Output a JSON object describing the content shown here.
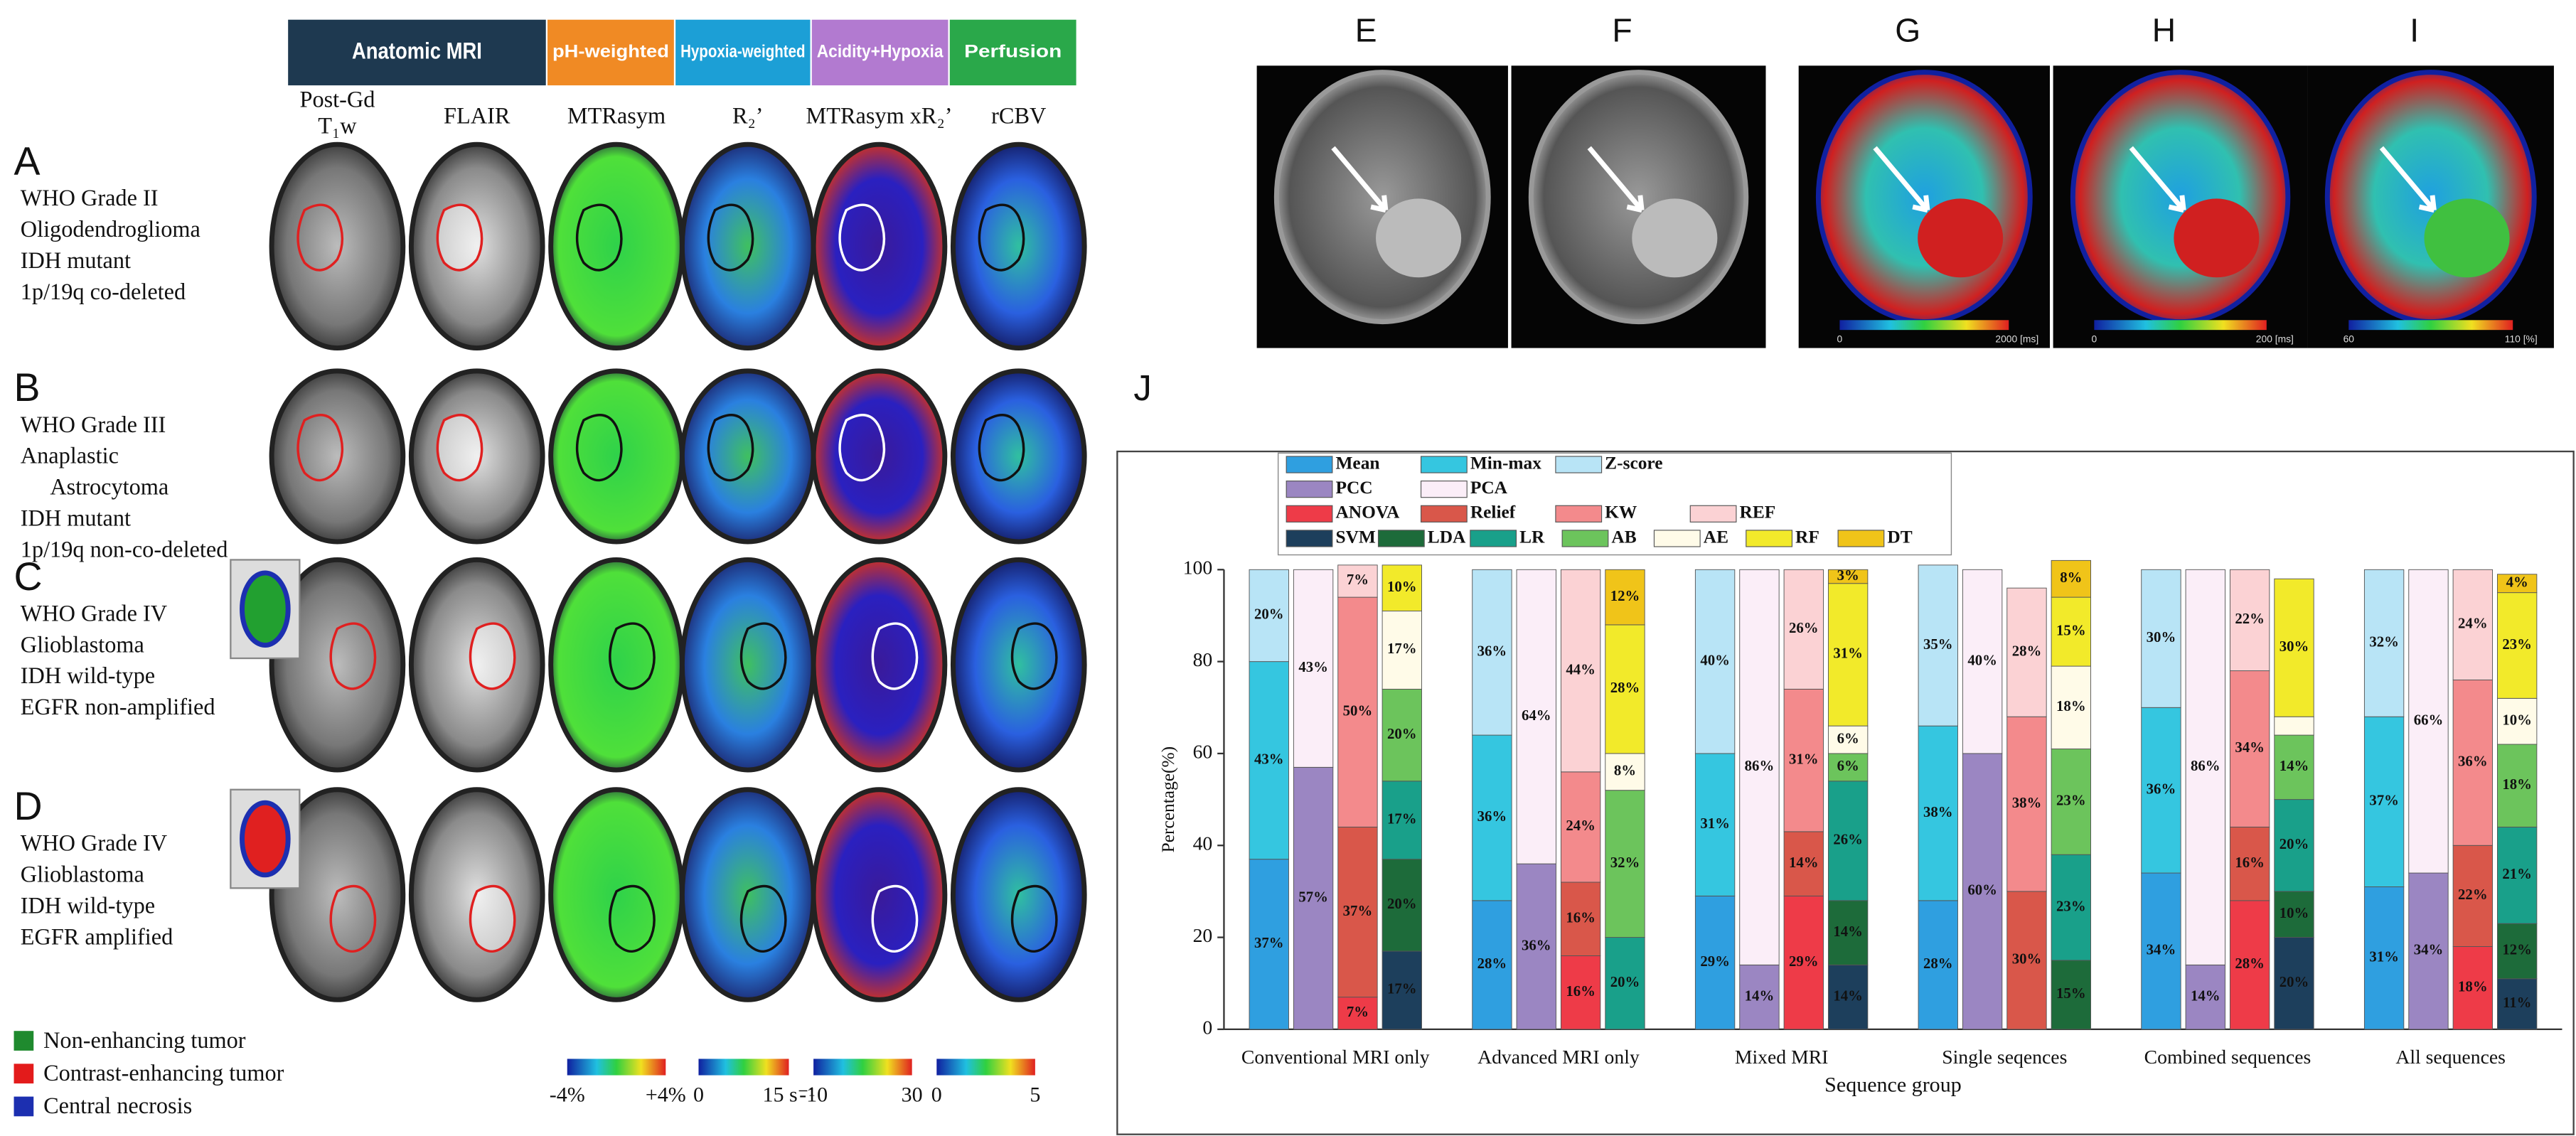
{
  "mri_panel": {
    "modalities": [
      {
        "label": "Anatomic MRI",
        "color": "#1e3950"
      },
      {
        "label": "pH-weighted",
        "color": "#f08a24"
      },
      {
        "label": "Hypoxia-weighted",
        "color": "#1c9fd6"
      },
      {
        "label": "Acidity+Hypoxia",
        "color": "#b27ad0"
      },
      {
        "label": "Perfusion",
        "color": "#2aa84a"
      }
    ],
    "columns": [
      [
        "Post-Gd",
        "T₁w"
      ],
      [
        "FLAIR"
      ],
      [
        "MTRasym"
      ],
      [
        "R₂’"
      ],
      [
        "MTRasym xR₂’"
      ],
      [
        "rCBV"
      ]
    ],
    "rows": [
      {
        "letter": "A",
        "lines": [
          "WHO Grade II",
          "Oligodendroglioma",
          "IDH mutant",
          "1p/19q co-deleted"
        ]
      },
      {
        "letter": "B",
        "lines": [
          "WHO Grade III",
          "Anaplastic",
          "Astrocytoma",
          "IDH mutant",
          "1p/19q non-co-deleted"
        ]
      },
      {
        "letter": "C",
        "lines": [
          "WHO Grade IV",
          "Glioblastoma",
          "IDH wild-type",
          "EGFR non-amplified"
        ]
      },
      {
        "letter": "D",
        "lines": [
          "WHO Grade IV",
          "Glioblastoma",
          "IDH wild-type",
          "EGFR amplified"
        ]
      }
    ],
    "legend": [
      {
        "label": "Non-enhancing tumor",
        "color": "#1f8a2e"
      },
      {
        "label": "Contrast-enhancing tumor",
        "color": "#e31b1b"
      },
      {
        "label": "Central necrosis",
        "color": "#1c2fb0"
      }
    ],
    "colorbars": [
      [
        "-4%",
        "+4%"
      ],
      [
        "0",
        "15 s⁻¹"
      ],
      [
        "-10",
        "30"
      ],
      [
        "0",
        "5"
      ]
    ]
  },
  "image_panels": {
    "labels": [
      "E",
      "F",
      "G",
      "H",
      "I"
    ],
    "colorbars": [
      [
        "0",
        "2000 [ms]"
      ],
      [
        "0",
        "200 [ms]"
      ],
      [
        "60",
        "110 [%]"
      ]
    ]
  },
  "chart_data": {
    "type": "stacked_bar",
    "title": "J",
    "xlabel": "Sequence group",
    "ylabel": "Percentage(%)",
    "categories": [
      "Conventional MRI only",
      "Advanced MRI only",
      "Mixed MRI",
      "Single seqences",
      "Combined sequences",
      "All sequences"
    ],
    "ylim": [
      0,
      100
    ],
    "yticks": [
      0,
      20,
      40,
      60,
      80,
      100
    ],
    "series": [
      {
        "name": "Mean",
        "color": "#2f9fe0",
        "stack": 0,
        "values": [
          37,
          28,
          29,
          28,
          34,
          31
        ],
        "value_labels": [
          "37%",
          "28%",
          "29%",
          "28%",
          "34%",
          "31%"
        ]
      },
      {
        "name": "Min-max",
        "color": "#35c6e0",
        "stack": 0,
        "values": [
          43,
          36,
          31,
          38,
          36,
          37
        ],
        "value_labels": [
          "43%",
          "36%",
          "31%",
          "38%",
          "36%",
          "37%"
        ]
      },
      {
        "name": "Z-score",
        "color": "#b8e4f6",
        "stack": 0,
        "values": [
          20,
          36,
          40,
          35,
          30,
          32
        ],
        "value_labels": [
          "20%",
          "36%",
          "40%",
          "35%",
          "30%",
          "32%"
        ]
      },
      {
        "name": "PCC",
        "color": "#9b86c2",
        "stack": 1,
        "values": [
          57,
          36,
          14,
          60,
          14,
          34
        ],
        "value_labels": [
          "57%",
          "36%",
          "14%",
          "60%",
          "14%",
          "34%"
        ]
      },
      {
        "name": "PCA",
        "color": "#fbeef8",
        "stack": 1,
        "values": [
          43,
          64,
          86,
          40,
          86,
          66
        ],
        "value_labels": [
          "43%",
          "64%",
          "86%",
          "40%",
          "86%",
          "66%"
        ]
      },
      {
        "name": "ANOVA",
        "color": "#ee3b48",
        "stack": 2,
        "values": [
          7,
          16,
          29,
          null,
          28,
          18
        ],
        "value_labels": [
          "7%",
          "16%",
          "29%",
          null,
          "28%",
          "18%"
        ]
      },
      {
        "name": "Relief",
        "color": "#d9574a",
        "stack": 2,
        "values": [
          37,
          16,
          14,
          30,
          16,
          22
        ],
        "value_labels": [
          "37%",
          "16%",
          "14%",
          "30%",
          "16%",
          "22%"
        ]
      },
      {
        "name": "KW",
        "color": "#f38a8c",
        "stack": 2,
        "values": [
          50,
          24,
          31,
          38,
          34,
          36
        ],
        "value_labels": [
          "50%",
          "24%",
          "31%",
          "38%",
          "34%",
          "36%"
        ]
      },
      {
        "name": "REF",
        "color": "#fbd2d4",
        "stack": 2,
        "values": [
          7,
          44,
          26,
          28,
          22,
          24
        ],
        "value_labels": [
          "7%",
          "44%",
          "26%",
          "28%",
          "22%",
          "24%"
        ]
      },
      {
        "name": "SVM",
        "color": "#1d3f5c",
        "stack": 3,
        "values": [
          17,
          null,
          14,
          null,
          20,
          11
        ],
        "value_labels": [
          "17%",
          null,
          "14%",
          null,
          "20%",
          "11%"
        ]
      },
      {
        "name": "LDA",
        "color": "#1d6b3a",
        "stack": 3,
        "values": [
          20,
          null,
          14,
          15,
          10,
          12
        ],
        "value_labels": [
          "20%",
          null,
          "14%",
          "15%",
          "10%",
          "12%"
        ]
      },
      {
        "name": "LR",
        "color": "#19a08a",
        "stack": 3,
        "values": [
          17,
          20,
          26,
          23,
          20,
          21
        ],
        "value_labels": [
          "17%",
          "20%",
          "26%",
          "23%",
          "20%",
          "21%"
        ]
      },
      {
        "name": "AB",
        "color": "#6cc45c",
        "stack": 3,
        "values": [
          20,
          32,
          6,
          23,
          14,
          18
        ],
        "value_labels": [
          "20%",
          "32%",
          "6%",
          "23%",
          "14%",
          "18%"
        ]
      },
      {
        "name": "AE",
        "color": "#fffbe8",
        "stack": 3,
        "values": [
          17,
          8,
          6,
          18,
          4,
          10
        ],
        "value_labels": [
          "17%",
          "8%",
          "6%",
          "18%",
          null,
          "10%"
        ]
      },
      {
        "name": "RF",
        "color": "#f2ea2a",
        "stack": 3,
        "values": [
          10,
          28,
          31,
          15,
          30,
          23
        ],
        "value_labels": [
          "10%",
          "28%",
          "31%",
          "15%",
          "30%",
          "23%"
        ]
      },
      {
        "name": "DT",
        "color": "#f0c419",
        "stack": 3,
        "values": [
          null,
          12,
          3,
          8,
          null,
          4
        ],
        "value_labels": [
          null,
          "12%",
          "3%",
          "8%",
          null,
          "4%"
        ]
      }
    ]
  }
}
